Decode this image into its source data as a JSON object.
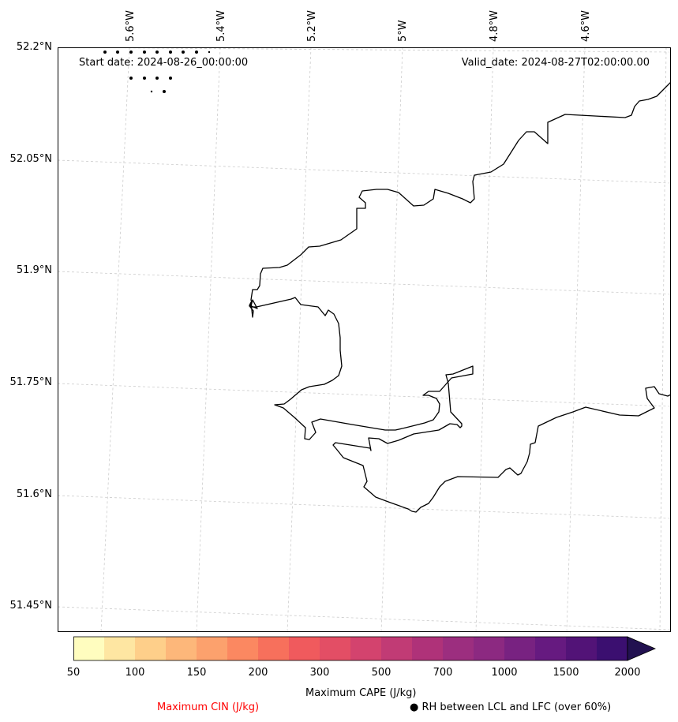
{
  "map": {
    "start_date": "Start date: 2024-08-26_00:00:00",
    "valid_date": "Valid_date: 2024-08-27T02:00:00.00",
    "lat_labels": [
      "52.2°N",
      "52.05°N",
      "51.9°N",
      "51.75°N",
      "51.6°N",
      "51.45°N"
    ],
    "lon_labels": [
      "5.6°W",
      "5.4°W",
      "5.2°W",
      "5°W",
      "4.8°W",
      "4.6°W"
    ],
    "coastline_color": "#000000",
    "gridline_color": "#cccccc"
  },
  "colorbar": {
    "title": "Maximum CAPE (J/kg)",
    "ticks": [
      "50",
      "100",
      "150",
      "200",
      "300",
      "500",
      "700",
      "1000",
      "1500",
      "2000"
    ],
    "colors": [
      "#fffdbf",
      "#fee6a2",
      "#fecf8a",
      "#fdb77a",
      "#fca16d",
      "#fb8861",
      "#f7705c",
      "#f05a5d",
      "#e34e65",
      "#d3436e",
      "#c13b75",
      "#af3279",
      "#9c2e7f",
      "#8c2981",
      "#782281",
      "#661a80",
      "#521377",
      "#3b0f70",
      "#221150"
    ]
  },
  "legend": {
    "cin_label": "Maximum CIN (J/kg)",
    "cin_color": "#ff0000",
    "rh_label": "● RH between LCL and LFC (over 60%)"
  }
}
